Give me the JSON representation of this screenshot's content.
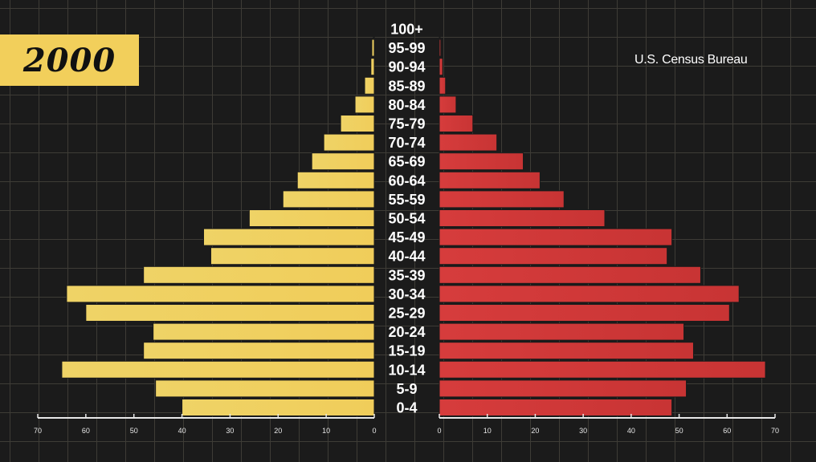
{
  "header": {
    "year": "2000",
    "source": "U.S. Census Bureau"
  },
  "colors": {
    "left_bars": "#f0cd5a",
    "right_bars": "#d63c3c",
    "background": "#1b1b1b",
    "grid": "#3e3c36"
  },
  "chart_data": {
    "type": "bar",
    "orientation": "horizontal",
    "layout": "population-pyramid",
    "categories": [
      "0-4",
      "5-9",
      "10-14",
      "15-19",
      "20-24",
      "25-29",
      "30-34",
      "35-39",
      "40-44",
      "45-49",
      "50-54",
      "55-59",
      "60-64",
      "65-69",
      "70-74",
      "75-79",
      "80-84",
      "85-89",
      "90-94",
      "95-99",
      "100+"
    ],
    "series": [
      {
        "side": "left",
        "color": "#f0cd5a",
        "values": [
          40,
          45.5,
          65,
          48,
          46,
          60,
          64,
          48,
          34,
          35.5,
          26,
          19,
          16,
          13,
          10.5,
          7,
          4,
          2,
          0.7,
          0.5,
          0.1
        ]
      },
      {
        "side": "right",
        "color": "#d63c3c",
        "values": [
          48.5,
          51.5,
          68,
          53,
          51,
          60.5,
          62.5,
          54.5,
          47.5,
          48.5,
          34.5,
          26,
          21,
          17.5,
          12,
          7,
          3.5,
          1.3,
          0.7,
          0.3,
          0.1
        ]
      }
    ],
    "xlim": [
      0,
      70
    ],
    "xticks_left": [
      70,
      60,
      50,
      40,
      30,
      20,
      10,
      0
    ],
    "xticks_right": [
      0,
      10,
      20,
      30,
      40,
      50,
      60,
      70
    ],
    "grid": true
  }
}
